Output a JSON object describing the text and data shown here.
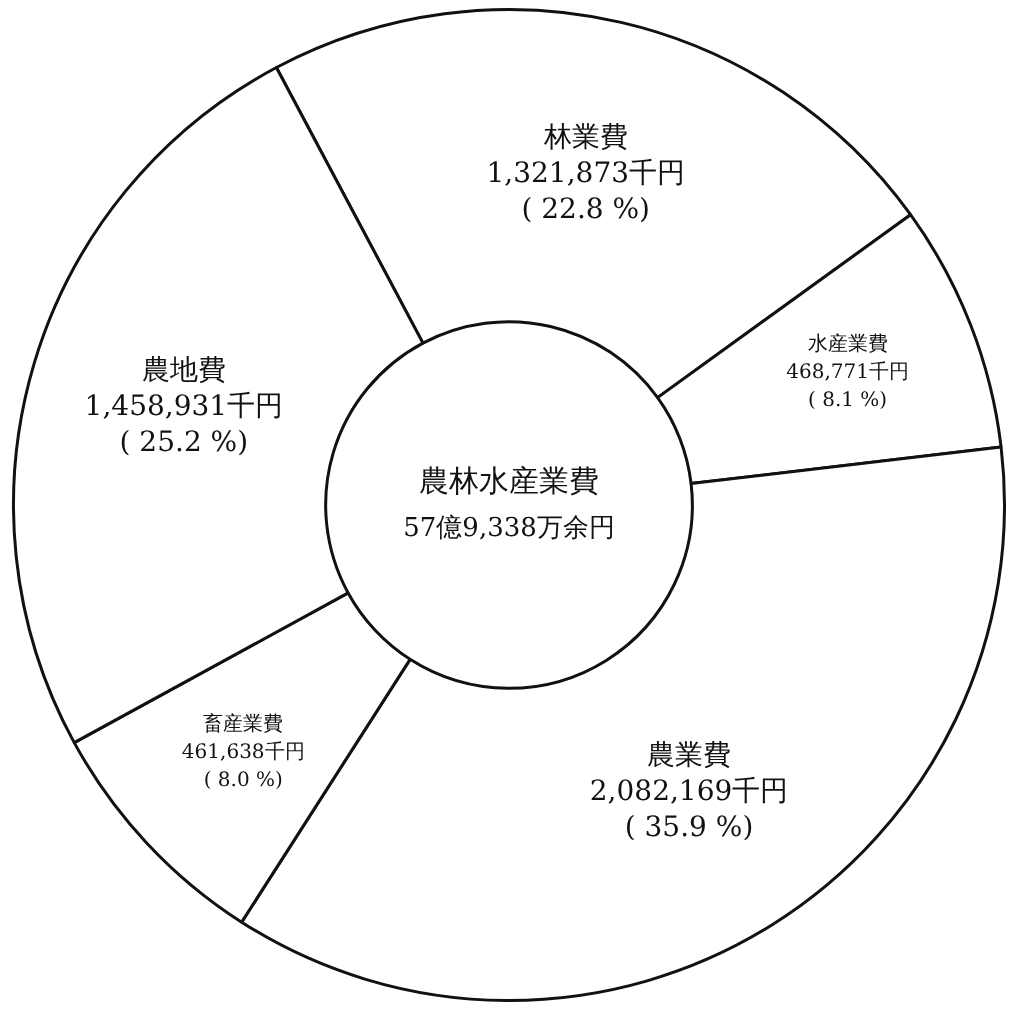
{
  "chart_data": {
    "type": "donut",
    "title": "農林水産業費",
    "subtitle": "57億9,338万余円",
    "categories": [
      "林業費",
      "水産業費",
      "農業費",
      "畜産業費",
      "農地費"
    ],
    "values": [
      1321873,
      468771,
      2082169,
      461638,
      1458931
    ],
    "value_labels": [
      "1,321,873千円\n( 22.8 %)",
      "468,771千円\n( 8.1 %)",
      "2,082,169千円\n( 35.9 %)",
      "461,638千円\n( 8.0 %)",
      "1,458,931千円\n( 25.2 %)"
    ],
    "colors": [
      "#ffffff",
      "#ffffff",
      "#ffffff",
      "#ffffff",
      "#ffffff"
    ],
    "legend": false
  }
}
